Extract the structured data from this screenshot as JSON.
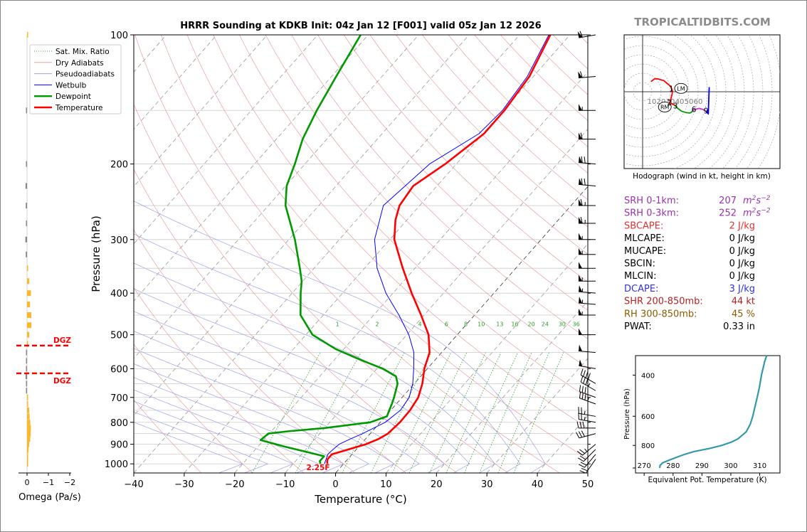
{
  "header": {
    "title": "HRRR Sounding at KDKB Init: 04z Jan 12 [F001] valid 05z Jan 12 2026",
    "brand": "TROPICALTIDBITS.COM"
  },
  "chart_data": [
    {
      "id": "skewt",
      "type": "line",
      "xlabel": "Temperature (°C)",
      "ylabel": "Pressure (hPa)",
      "xlim": [
        -40,
        50
      ],
      "ylim": [
        1050,
        100
      ],
      "y_scale": "log",
      "x_ticks": [
        "−40",
        "−30",
        "−20",
        "−10",
        "0",
        "10",
        "20",
        "30",
        "40",
        "50"
      ],
      "y_ticks": [
        "100",
        "200",
        "300",
        "400",
        "500",
        "600",
        "700",
        "800",
        "900",
        "1000"
      ],
      "legend_position": "upper-left",
      "legend": [
        {
          "name": "Sat. Mix. Ratio",
          "color": "#2ca02c",
          "style": "dotted"
        },
        {
          "name": "Dry Adiabats",
          "color": "#e8a0a0",
          "style": "solid"
        },
        {
          "name": "Pseudoadiabats",
          "color": "#a0a0e8",
          "style": "solid"
        },
        {
          "name": "Wetbulb",
          "color": "#0000ff",
          "style": "solid"
        },
        {
          "name": "Dewpoint",
          "color": "#009900",
          "style": "solid"
        },
        {
          "name": "Temperature",
          "color": "#ff0000",
          "style": "solid"
        }
      ],
      "mixing_ratio_labels": [
        "1",
        "2",
        "4",
        "6",
        "8",
        "10",
        "13",
        "16",
        "20",
        "24",
        "30",
        "36"
      ],
      "surface_label": "2.25F",
      "series": [
        {
          "name": "Temperature",
          "color": "#ff0000",
          "p": [
            1000,
            990,
            975,
            950,
            925,
            900,
            875,
            850,
            800,
            750,
            700,
            650,
            600,
            550,
            500,
            450,
            400,
            350,
            300,
            270,
            250,
            225,
            200,
            170,
            150,
            125,
            100
          ],
          "t": [
            -3.2,
            -3.6,
            -4.0,
            -4.0,
            -1.5,
            1.0,
            2.6,
            3.5,
            3.9,
            3.8,
            3.2,
            1.6,
            -0.6,
            -2.4,
            -5.7,
            -10.6,
            -16.3,
            -22.4,
            -29.1,
            -32.3,
            -34.0,
            -34.7,
            -32.2,
            -29.8,
            -29.8,
            -30.8,
            -33.9
          ]
        },
        {
          "name": "Dewpoint",
          "color": "#009900",
          "p": [
            1000,
            985,
            960,
            940,
            910,
            880,
            850,
            840,
            825,
            800,
            775,
            750,
            725,
            700,
            650,
            625,
            600,
            575,
            540,
            500,
            450,
            400,
            375,
            350,
            300,
            250,
            225,
            200,
            175,
            150,
            125,
            100
          ],
          "t": [
            -4.6,
            -5.2,
            -5.2,
            -9.0,
            -15.0,
            -20.6,
            -20.2,
            -16.8,
            -10.0,
            -2.0,
            0.3,
            -0.3,
            -0.9,
            -1.6,
            -3.3,
            -4.9,
            -8.8,
            -14.2,
            -21.6,
            -28.7,
            -34.5,
            -38.3,
            -40.2,
            -42.8,
            -48.8,
            -56.6,
            -59.8,
            -62.0,
            -64.8,
            -67.0,
            -69.1,
            -71.5
          ]
        },
        {
          "name": "Wetbulb",
          "color": "#0000ff",
          "p": [
            1000,
            950,
            925,
            900,
            875,
            850,
            800,
            750,
            700,
            650,
            600,
            550,
            500,
            450,
            400,
            350,
            300,
            250,
            200,
            170,
            150,
            125,
            100
          ],
          "t": [
            -3.8,
            -4.8,
            -4.6,
            -4.3,
            -3.0,
            -1.5,
            1.0,
            1.9,
            1.4,
            -0.3,
            -2.7,
            -5.5,
            -9.6,
            -15.0,
            -21.4,
            -27.5,
            -33.0,
            -37.2,
            -35.3,
            -30.8,
            -30.2,
            -31.2,
            -34.2
          ]
        }
      ]
    },
    {
      "id": "omega",
      "type": "bar",
      "orientation": "horizontal",
      "xlabel": "Omega (Pa/s)",
      "x_ticks": [
        "0",
        "−1",
        "−2"
      ],
      "dgz_label": "DGZ",
      "dgz_pressure": [
        530,
        615
      ],
      "p": [
        100,
        150,
        200,
        225,
        250,
        275,
        300,
        325,
        350,
        375,
        400,
        425,
        450,
        475,
        500,
        525,
        550,
        575,
        600,
        625,
        650,
        675,
        700,
        725,
        750,
        775,
        800,
        825,
        850,
        875,
        900,
        925,
        950,
        975,
        1000
      ],
      "values": [
        -0.05,
        0.05,
        0.03,
        0.07,
        0.06,
        0.05,
        0.08,
        0.06,
        -0.05,
        -0.1,
        -0.18,
        -0.14,
        -0.2,
        -0.2,
        -0.1,
        -0.04,
        0.02,
        0.05,
        0.04,
        0.07,
        0.05,
        0.03,
        -0.02,
        -0.05,
        -0.1,
        -0.12,
        -0.15,
        -0.18,
        -0.17,
        -0.15,
        -0.1,
        -0.07,
        -0.05,
        -0.03,
        -0.01
      ]
    },
    {
      "id": "hodograph",
      "type": "line",
      "caption": "Hodograph (wind in kt, height in km)",
      "ring_labels": [
        "10",
        "20",
        "30",
        "40",
        "50",
        "60"
      ],
      "storm_motion_labels": [
        "LM",
        "RM"
      ],
      "height_labels": [
        "1",
        "2",
        "3",
        "6",
        "9"
      ],
      "segments": [
        {
          "color": "#ff0000",
          "u": [
            9,
            13,
            16,
            23,
            30,
            32,
            32,
            31,
            30,
            29.6
          ],
          "v": [
            11,
            14,
            14,
            12,
            6,
            2,
            -2,
            -6,
            -10,
            -12.5
          ]
        },
        {
          "color": "#ff0000",
          "u": [
            29.6,
            33,
            35
          ],
          "v": [
            -12.5,
            -13.5,
            -15
          ]
        },
        {
          "color": "#009900",
          "u": [
            35,
            38,
            42,
            47,
            51,
            53,
            54.4
          ],
          "v": [
            -15,
            -18,
            -21,
            -22.5,
            -23,
            -22,
            -20
          ]
        },
        {
          "color": "#cc33cc",
          "u": [
            54.4,
            57,
            61,
            65,
            68.8
          ],
          "v": [
            -20,
            -19,
            -18,
            -19,
            -21.5
          ]
        },
        {
          "color": "#0000ff",
          "u": [
            68.8,
            71,
            72
          ],
          "v": [
            -21.5,
            -24,
            5
          ]
        }
      ],
      "storm_motion": {
        "LM": [
          41.5,
          3.6
        ],
        "RM": [
          24,
          -16.5
        ]
      },
      "height_points": [
        {
          "label": "1",
          "u": 31,
          "v": 3.5
        },
        {
          "label": "2",
          "u": 29,
          "v": -11.5
        },
        {
          "label": "3",
          "u": 35.5,
          "v": -15
        },
        {
          "label": "6",
          "u": 55.5,
          "v": -19
        },
        {
          "label": "9",
          "u": 68.5,
          "v": -20.5
        }
      ]
    },
    {
      "id": "theta_e",
      "type": "line",
      "xlabel": "Equivalent Pot. Temperature (K)",
      "ylabel": "Pressure (hPa)",
      "x_ticks": [
        "270",
        "280",
        "290",
        "300",
        "310"
      ],
      "y_ticks": [
        "400",
        "600",
        "800"
      ],
      "xlim": [
        267,
        317
      ],
      "ylim": [
        1050,
        330
      ],
      "color": "#3399aa",
      "p": [
        1000,
        975,
        950,
        925,
        900,
        875,
        850,
        825,
        800,
        775,
        750,
        700,
        650,
        600,
        550,
        500,
        450,
        400,
        350,
        330
      ],
      "theta_e": [
        275.4,
        275.5,
        276.4,
        278.7,
        281.2,
        283.9,
        287.2,
        292.6,
        296.9,
        300.1,
        302.5,
        305.3,
        306.7,
        307.6,
        308.3,
        309.1,
        309.9,
        310.6,
        311.7,
        312.4
      ]
    }
  ],
  "wind_barbs": {
    "color": "#000000",
    "p": [
      100,
      125,
      150,
      175,
      200,
      225,
      250,
      275,
      300,
      325,
      350,
      375,
      400,
      425,
      450,
      500,
      550,
      600,
      650,
      675,
      700,
      725,
      775,
      800,
      825,
      850,
      900,
      925,
      950,
      975
    ],
    "speed_kt": [
      60,
      60,
      55,
      60,
      70,
      70,
      65,
      65,
      55,
      55,
      50,
      55,
      55,
      55,
      55,
      50,
      50,
      50,
      40,
      35,
      30,
      35,
      25,
      25,
      30,
      30,
      25,
      20,
      20,
      20
    ],
    "direction_deg": [
      260,
      265,
      270,
      270,
      275,
      275,
      270,
      270,
      270,
      270,
      270,
      270,
      275,
      275,
      270,
      270,
      275,
      280,
      300,
      300,
      290,
      290,
      280,
      280,
      270,
      255,
      230,
      225,
      220,
      215
    ]
  },
  "indices": [
    {
      "label": "SRH 0-1km:",
      "value": "207",
      "unit_html": "m<tspan baseline-shift='super' font-size='9'>2</tspan>s<tspan baseline-shift='super' font-size='9'>−2</tspan>",
      "color": "#9933aa"
    },
    {
      "label": "SRH 0-3km:",
      "value": "252",
      "color": "#9933aa"
    },
    {
      "label": "SBCAPE:",
      "value": "2 J/kg",
      "color": "#e03030"
    },
    {
      "label": "MLCAPE:",
      "value": "0 J/kg",
      "color": "#000000"
    },
    {
      "label": "MUCAPE:",
      "value": "0 J/kg",
      "color": "#000000"
    },
    {
      "label": "SBCIN:",
      "value": "0 J/kg",
      "color": "#000000"
    },
    {
      "label": "MLCIN:",
      "value": "0 J/kg",
      "color": "#000000"
    },
    {
      "label": "DCAPE:",
      "value": "3 J/kg",
      "color": "#3333cc"
    },
    {
      "label": "SHR 200-850mb:",
      "value": "44 kt",
      "color": "#b22222"
    },
    {
      "label": "RH 300-850mb:",
      "value": "45 %",
      "color": "#8b5a00"
    },
    {
      "label": "PWAT:",
      "value": "0.33 in",
      "color": "#000000"
    }
  ],
  "srh_unit": {
    "base": "m",
    "exp1": "2",
    "mid": "s",
    "exp2": "−2"
  }
}
